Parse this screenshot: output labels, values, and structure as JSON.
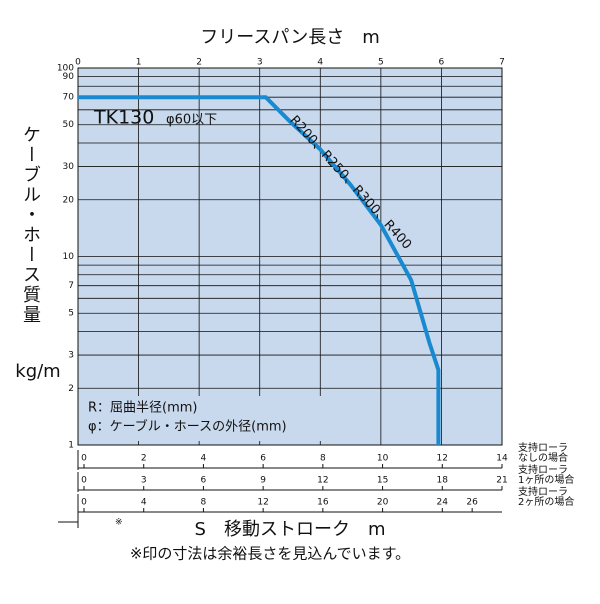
{
  "chart_data": {
    "type": "line",
    "title": "フリースパン長さ　m",
    "ylabel": "ケーブル・ホース質量",
    "yunit": "kg/m",
    "xlabel": "S　移動ストローク　m",
    "x": [
      0,
      3.1,
      3.5,
      4,
      4.5,
      5,
      5.5,
      5.8,
      5.95,
      5.95
    ],
    "series": [
      {
        "name": "TK130",
        "color": "#1a8ad0",
        "values": [
          70,
          70,
          52,
          37,
          24,
          14.7,
          7.5,
          3.5,
          2.5,
          1
        ]
      }
    ],
    "series_note": "φ60以下",
    "curve_label": "R200、R250、R300、R400",
    "xlim": [
      0,
      7
    ],
    "xticks": [
      0,
      1,
      2,
      3,
      4,
      5,
      6,
      7
    ],
    "ylim": [
      1,
      100
    ],
    "yscale": "log",
    "yticks": [
      1,
      2,
      3,
      5,
      7,
      10,
      20,
      30,
      50,
      70,
      90,
      100
    ],
    "y_minor_ticks": [
      4,
      6,
      8,
      9,
      40,
      60,
      80
    ],
    "grid": true,
    "background": "#c9d9ed",
    "notes": [
      "R：屈曲半径(mm)",
      "φ：ケーブル・ホースの外径(mm)"
    ],
    "stroke_axes": [
      {
        "label": [
          "支持ローラ",
          "なしの場合"
        ],
        "xlim": [
          0,
          14
        ],
        "xticks": [
          0,
          2,
          4,
          6,
          8,
          10,
          12,
          14
        ]
      },
      {
        "label": [
          "支持ローラ",
          "1ヶ所の場合"
        ],
        "xlim": [
          0,
          21
        ],
        "xticks": [
          0,
          3,
          6,
          9,
          12,
          15,
          18,
          21
        ]
      },
      {
        "label": [
          "支持ローラ",
          "2ヶ所の場合"
        ],
        "xlim": [
          0,
          28
        ],
        "xticks": [
          0,
          4,
          8,
          12,
          16,
          20,
          24,
          26
        ]
      }
    ],
    "margin_mark": "※",
    "footnote": "※印の寸法は余裕長さを見込んでいます。"
  }
}
